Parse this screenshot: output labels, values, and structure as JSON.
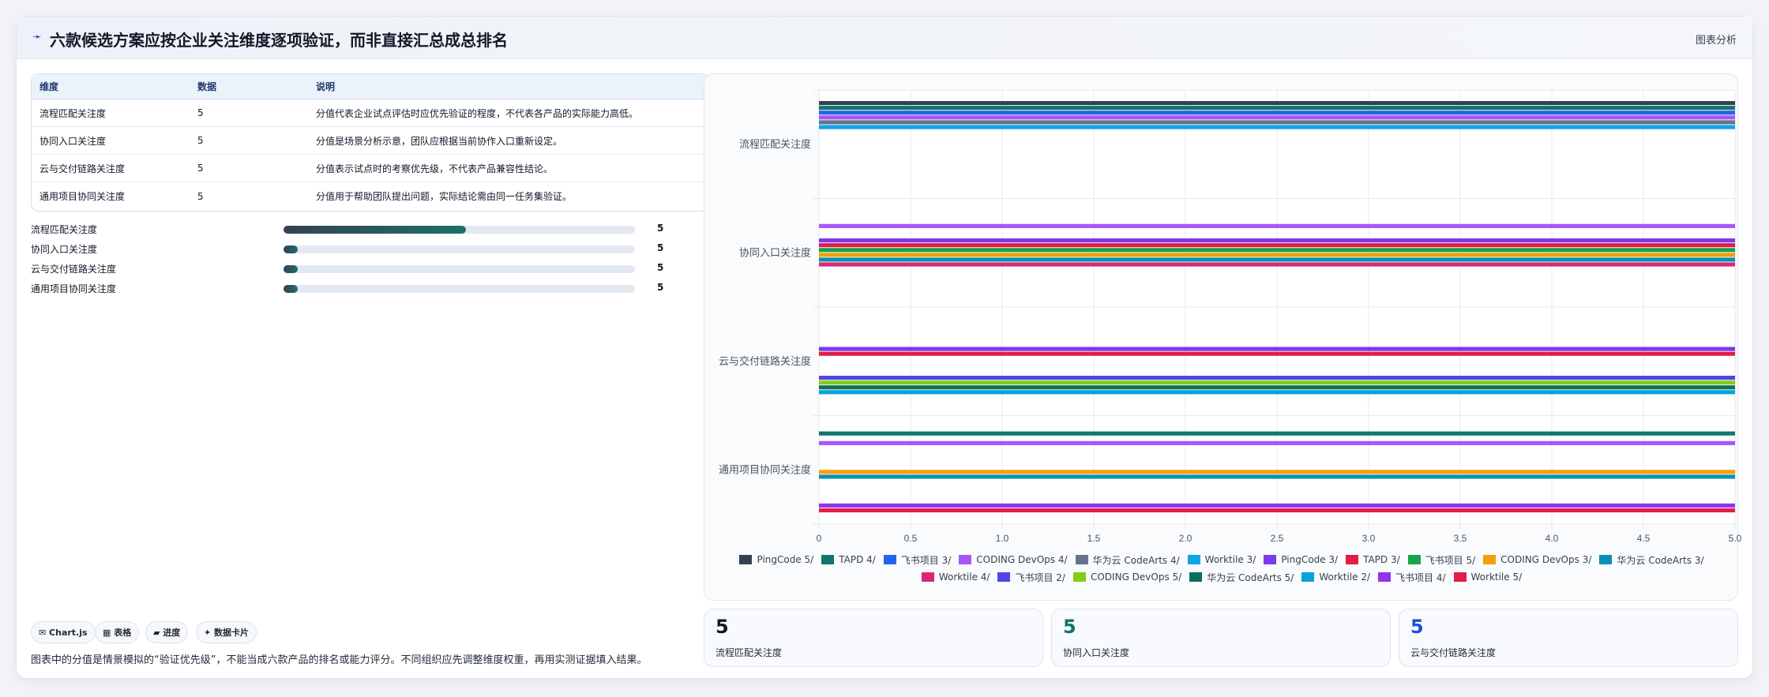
{
  "header": {
    "icon": "pin-icon",
    "title": "六款候选方案应按企业关注维度逐项验证，而非直接汇总成总排名",
    "link": "图表分析"
  },
  "table": {
    "columns": [
      "维度",
      "数据",
      "说明"
    ],
    "rows": [
      [
        "流程匹配关注度",
        "5",
        "分值代表企业试点评估时应优先验证的程度，不代表各产品的实际能力高低。"
      ],
      [
        "协同入口关注度",
        "5",
        "分值是场景分析示意，团队应根据当前协作入口重新设定。"
      ],
      [
        "云与交付链路关注度",
        "5",
        "分值表示试点时的考察优先级，不代表产品兼容性结论。"
      ],
      [
        "通用项目协同关注度",
        "5",
        "分值用于帮助团队提出问题，实际结论需由同一任务集验证。"
      ]
    ]
  },
  "progress": [
    {
      "label": "流程匹配关注度",
      "value": "5",
      "fill": 0.52
    },
    {
      "label": "协同入口关注度",
      "value": "5",
      "fill": 0.04
    },
    {
      "label": "云与交付链路关注度",
      "value": "5",
      "fill": 0.04
    },
    {
      "label": "通用项目协同关注度",
      "value": "5",
      "fill": 0.04
    }
  ],
  "chips": [
    "✉ Chart.js",
    "▦ 表格",
    "▰ 进度",
    "✦ 数据卡片"
  ],
  "note": "图表中的分值是情景模拟的“验证优先级”，不能当成六款产品的排名或能力评分。不同组织应先调整维度权重，再用实测证据填入结果。",
  "stats": [
    {
      "value": "5",
      "label": "流程匹配关注度",
      "color": "#111827"
    },
    {
      "value": "5",
      "label": "协同入口关注度",
      "color": "#0f766e"
    },
    {
      "value": "5",
      "label": "云与交付链路关注度",
      "color": "#1d4ed8"
    }
  ],
  "chart_data": {
    "type": "bar",
    "orientation": "horizontal",
    "categories": [
      "流程匹配关注度",
      "协同入口关注度",
      "云与交付链路关注度",
      "通用项目协同关注度"
    ],
    "xlim": [
      0,
      5
    ],
    "xticks": [
      "0",
      "0.5",
      "1.0",
      "1.5",
      "2.0",
      "2.5",
      "3.0",
      "3.5",
      "4.0",
      "4.5",
      "5.0"
    ],
    "grid": true,
    "legend_position": "bottom",
    "series": [
      {
        "name": "PingCode 5/",
        "color": "#334155",
        "values": [
          5,
          null,
          null,
          null
        ]
      },
      {
        "name": "TAPD 4/",
        "color": "#0f766e",
        "values": [
          5,
          null,
          null,
          5
        ]
      },
      {
        "name": "飞书项目 3/",
        "color": "#2563eb",
        "values": [
          5,
          null,
          null,
          null
        ]
      },
      {
        "name": "CODING DevOps 4/",
        "color": "#a855f7",
        "values": [
          5,
          5,
          null,
          5
        ]
      },
      {
        "name": "华为云 CodeArts 4/",
        "color": "#64748b",
        "values": [
          5,
          null,
          null,
          null
        ]
      },
      {
        "name": "Worktile 3/",
        "color": "#0ea5e9",
        "values": [
          5,
          null,
          null,
          null
        ]
      },
      {
        "name": "PingCode 3/",
        "color": "#7c3aed",
        "values": [
          null,
          5,
          5,
          null
        ]
      },
      {
        "name": "TAPD 3/",
        "color": "#e11d48",
        "values": [
          null,
          5,
          5,
          null
        ]
      },
      {
        "name": "飞书项目 5/",
        "color": "#16a34a",
        "values": [
          null,
          5,
          null,
          null
        ]
      },
      {
        "name": "CODING DevOps 3/",
        "color": "#f59e0b",
        "values": [
          null,
          5,
          null,
          5
        ]
      },
      {
        "name": "华为云 CodeArts 3/",
        "color": "#0891b2",
        "values": [
          null,
          5,
          null,
          5
        ]
      },
      {
        "name": "Worktile 4/",
        "color": "#db2777",
        "values": [
          null,
          5,
          null,
          null
        ]
      },
      {
        "name": "飞书项目 2/",
        "color": "#4f46e5",
        "values": [
          null,
          null,
          5,
          null
        ]
      },
      {
        "name": "CODING DevOps 5/",
        "color": "#84cc16",
        "values": [
          null,
          null,
          5,
          null
        ]
      },
      {
        "name": "华为云 CodeArts 5/",
        "color": "#0d6e5e",
        "values": [
          null,
          null,
          5,
          null
        ]
      },
      {
        "name": "Worktile 2/",
        "color": "#06a3d9",
        "values": [
          null,
          null,
          5,
          null
        ]
      },
      {
        "name": "飞书项目 4/",
        "color": "#9333ea",
        "values": [
          null,
          null,
          null,
          5
        ]
      },
      {
        "name": "Worktile 5/",
        "color": "#e11d48",
        "values": [
          null,
          null,
          null,
          5
        ]
      }
    ]
  }
}
